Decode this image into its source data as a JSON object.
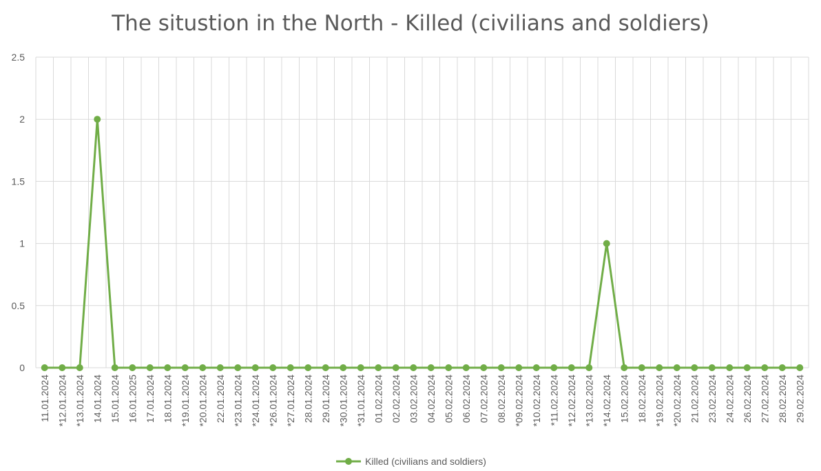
{
  "chart_data": {
    "type": "line",
    "title": "The situstion in the North - Killed (civilians and soldiers)",
    "xlabel": "",
    "ylabel": "",
    "ylim": [
      0,
      2.5
    ],
    "yticks": [
      "0",
      "0.5",
      "1",
      "1.5",
      "2",
      "2.5"
    ],
    "grid": true,
    "legend_position": "bottom",
    "categories": [
      "11.01.2024",
      "*12.01.2024",
      "*13.01.2024",
      "14.01.2024",
      "15.01.2024",
      "16.01.2025",
      "17.01.2024",
      "18.01.2024",
      "*19.01.2024",
      "*20.01.2024",
      "22.01.2024",
      "*23.01.2024",
      "*24.01.2024",
      "*26.01.2024",
      "*27.01.2024",
      "28.01.2024",
      "29.01.2024",
      "*30.01.2024",
      "*31.01.2024",
      "01.02.2024",
      "02.02.2024",
      "03.02.2024",
      "04.02.2024",
      "05.02.2024",
      "06.02.2024",
      "07.02.2024",
      "08.02.2024",
      "*09.02.2024",
      "*10.02.2024",
      "*11.02.2024",
      "*12.02.2024",
      "*13.02.2024",
      "*14.02.2024",
      "15.02.2024",
      "18.02.2024",
      "*19.02.2024",
      "*20.02.2024",
      "21.02.2024",
      "23.02.2024",
      "24.02.2024",
      "26.02.2024",
      "27.02.2024",
      "28.02.2024",
      "29.02.2024"
    ],
    "series": [
      {
        "name": "Killed (civilians and soldiers)",
        "color": "#70AD47",
        "values": [
          0,
          0,
          0,
          2,
          0,
          0,
          0,
          0,
          0,
          0,
          0,
          0,
          0,
          0,
          0,
          0,
          0,
          0,
          0,
          0,
          0,
          0,
          0,
          0,
          0,
          0,
          0,
          0,
          0,
          0,
          0,
          0,
          1,
          0,
          0,
          0,
          0,
          0,
          0,
          0,
          0,
          0,
          0,
          0
        ]
      }
    ]
  }
}
